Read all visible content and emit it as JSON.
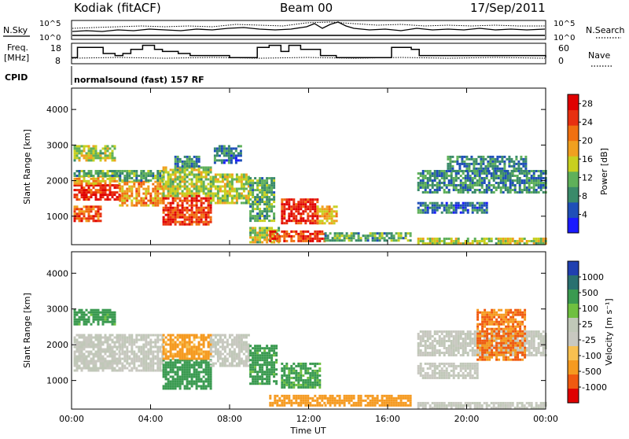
{
  "header": {
    "station": "Kodiak (fitACF)",
    "beam": "Beam 00",
    "date": "17/Sep/2011"
  },
  "panels_text": {
    "nsky_label": "N.Sky",
    "nsearch_label": "N.Search",
    "freq_label_line1": "Freq.",
    "freq_label_line2": "[MHz]",
    "nave_label": "Nave",
    "cpid_label": "CPID",
    "cpid_value": "normalsound (fast) 157 RF",
    "nsky_ticks": [
      "10^5",
      "10^0"
    ],
    "nsearch_ticks": [
      "10^5",
      "10^0"
    ],
    "freq_ticks": [
      "18",
      "8"
    ],
    "nave_ticks": [
      "60",
      "0"
    ]
  },
  "axes_text": {
    "ylabel": "Slant Range [km]",
    "xlabel": "Time UT",
    "power_label": "Power [dB]",
    "velocity_label": "Velocity [m s⁻¹]"
  },
  "colors": {
    "power_scale": [
      "#1a1aff",
      "#1f4fb8",
      "#3a8a6a",
      "#5fb05a",
      "#c8d020",
      "#f0a020",
      "#f07010",
      "#e83010",
      "#e00000"
    ],
    "velocity_scale": [
      "#e00000",
      "#f05a10",
      "#f59a20",
      "#f8c050",
      "#c8c8c0",
      "#c0c8b8",
      "#6fc040",
      "#3a9a50",
      "#2a7070",
      "#2040b0"
    ]
  },
  "chart_data": [
    {
      "type": "heatmap",
      "name": "power",
      "ylabel": "Slant Range [km]",
      "xlabel": "",
      "x_ticks": [
        "00:00",
        "04:00",
        "08:00",
        "12:00",
        "16:00",
        "20:00",
        "00:00"
      ],
      "y_ticks": [
        1000,
        2000,
        3000,
        4000
      ],
      "ylim": [
        200,
        4600
      ],
      "xlim_hours": [
        0,
        24
      ],
      "colorbar": {
        "label": "Power [dB]",
        "ticks": [
          "4",
          "8",
          "12",
          "16",
          "20",
          "24",
          "28"
        ],
        "range": [
          0,
          30
        ]
      },
      "regions": [
        {
          "t0": 0.1,
          "t1": 2.4,
          "r0": 1500,
          "r1": 1900,
          "level": 28
        },
        {
          "t0": 0.1,
          "t1": 2.4,
          "r0": 1900,
          "r1": 2150,
          "level": 18
        },
        {
          "t0": 0.1,
          "t1": 2.2,
          "r0": 2600,
          "r1": 3000,
          "level": 14
        },
        {
          "t0": 0.1,
          "t1": 2.4,
          "r0": 2150,
          "r1": 2300,
          "level": 10
        },
        {
          "t0": 0.1,
          "t1": 1.5,
          "r0": 900,
          "r1": 1300,
          "level": 24
        },
        {
          "t0": 2.4,
          "t1": 4.6,
          "r0": 1300,
          "r1": 2000,
          "level": 20
        },
        {
          "t0": 2.4,
          "t1": 4.6,
          "r0": 2000,
          "r1": 2300,
          "level": 10
        },
        {
          "t0": 4.6,
          "t1": 7.0,
          "r0": 800,
          "r1": 1600,
          "level": 26
        },
        {
          "t0": 4.6,
          "t1": 7.0,
          "r0": 1600,
          "r1": 2400,
          "level": 14
        },
        {
          "t0": 5.2,
          "t1": 6.4,
          "r0": 2400,
          "r1": 2700,
          "level": 8
        },
        {
          "t0": 7.0,
          "t1": 9.0,
          "r0": 1400,
          "r1": 2200,
          "level": 14
        },
        {
          "t0": 7.2,
          "t1": 8.6,
          "r0": 2500,
          "r1": 3000,
          "level": 6
        },
        {
          "t0": 9.0,
          "t1": 10.5,
          "r0": 300,
          "r1": 700,
          "level": 14
        },
        {
          "t0": 9.0,
          "t1": 10.2,
          "r0": 900,
          "r1": 2100,
          "level": 10
        },
        {
          "t0": 10.0,
          "t1": 12.8,
          "r0": 300,
          "r1": 600,
          "level": 26
        },
        {
          "t0": 10.6,
          "t1": 12.4,
          "r0": 800,
          "r1": 1500,
          "level": 28
        },
        {
          "t0": 12.4,
          "t1": 13.4,
          "r0": 800,
          "r1": 1300,
          "level": 18
        },
        {
          "t0": 12.8,
          "t1": 17.2,
          "r0": 300,
          "r1": 550,
          "level": 10
        },
        {
          "t0": 17.5,
          "t1": 24.0,
          "r0": 1700,
          "r1": 2300,
          "level": 8
        },
        {
          "t0": 17.5,
          "t1": 21.0,
          "r0": 1100,
          "r1": 1400,
          "level": 6
        },
        {
          "t0": 19.0,
          "t1": 23.0,
          "r0": 2300,
          "r1": 2700,
          "level": 7
        },
        {
          "t0": 17.5,
          "t1": 24.0,
          "r0": 250,
          "r1": 400,
          "level": 14
        }
      ]
    },
    {
      "type": "heatmap",
      "name": "velocity",
      "ylabel": "Slant Range [km]",
      "xlabel": "Time UT",
      "x_ticks": [
        "00:00",
        "04:00",
        "08:00",
        "12:00",
        "16:00",
        "20:00",
        "00:00"
      ],
      "y_ticks": [
        1000,
        2000,
        3000,
        4000
      ],
      "ylim": [
        200,
        4600
      ],
      "xlim_hours": [
        0,
        24
      ],
      "colorbar": {
        "label": "Velocity [m s⁻¹]",
        "ticks": [
          "1000",
          "500",
          "100",
          "25",
          "-25",
          "-100",
          "-500",
          "-1000"
        ]
      },
      "regions": [
        {
          "t0": 0.1,
          "t1": 2.4,
          "r0": 1300,
          "r1": 2300,
          "level": 0
        },
        {
          "t0": 0.1,
          "t1": 2.2,
          "r0": 2600,
          "r1": 3000,
          "level": 150
        },
        {
          "t0": 2.4,
          "t1": 4.6,
          "r0": 1300,
          "r1": 2300,
          "level": 0
        },
        {
          "t0": 4.6,
          "t1": 7.0,
          "r0": 800,
          "r1": 1600,
          "level": 200
        },
        {
          "t0": 4.6,
          "t1": 7.0,
          "r0": 1600,
          "r1": 2300,
          "level": -150
        },
        {
          "t0": 7.0,
          "t1": 9.0,
          "r0": 1400,
          "r1": 2300,
          "level": 0
        },
        {
          "t0": 9.0,
          "t1": 10.4,
          "r0": 900,
          "r1": 2000,
          "level": 150
        },
        {
          "t0": 10.0,
          "t1": 12.8,
          "r0": 300,
          "r1": 600,
          "level": -200
        },
        {
          "t0": 10.6,
          "t1": 12.6,
          "r0": 800,
          "r1": 1500,
          "level": 120
        },
        {
          "t0": 12.8,
          "t1": 17.2,
          "r0": 300,
          "r1": 600,
          "level": -200
        },
        {
          "t0": 17.5,
          "t1": 24.0,
          "r0": 1700,
          "r1": 2400,
          "level": 0
        },
        {
          "t0": 17.5,
          "t1": 20.5,
          "r0": 1100,
          "r1": 1500,
          "level": 0
        },
        {
          "t0": 20.5,
          "t1": 23.0,
          "r0": 1600,
          "r1": 3000,
          "level": -500
        },
        {
          "t0": 17.5,
          "t1": 24.0,
          "r0": 250,
          "r1": 400,
          "level": 0
        }
      ]
    },
    {
      "type": "line",
      "name": "frequency",
      "yticks": [
        "18",
        "8"
      ],
      "ylim": [
        8,
        18
      ],
      "x": [
        0.0,
        0.3,
        1.0,
        1.6,
        2.2,
        2.6,
        3.0,
        3.6,
        4.2,
        4.6,
        5.4,
        6.0,
        7.2,
        8.0,
        9.4,
        10.0,
        10.6,
        11.0,
        11.6,
        12.6,
        13.4,
        15.8,
        16.2,
        17.2,
        17.6,
        24.0
      ],
      "values": [
        11,
        16,
        16,
        13,
        12,
        13,
        15,
        17,
        15,
        14,
        13,
        12,
        12,
        11,
        16,
        17,
        14,
        17,
        15,
        12,
        11,
        11,
        16,
        15,
        12,
        11
      ]
    }
  ]
}
